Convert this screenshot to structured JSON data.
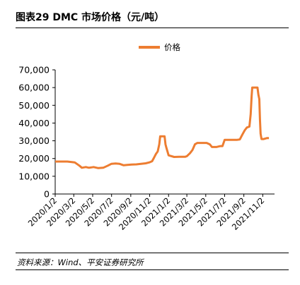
{
  "header": {
    "title": "图表29    DMC 市场价格（元/吨）"
  },
  "source": "资料来源：Wind、平安证券研究所",
  "chart_data": {
    "type": "line",
    "title": "",
    "xlabel": "",
    "ylabel": "",
    "ylim": [
      0,
      70000
    ],
    "yticks": [
      "0",
      "10,000",
      "20,000",
      "30,000",
      "40,000",
      "50,000",
      "60,000",
      "70,000"
    ],
    "ytick_values": [
      0,
      10000,
      20000,
      30000,
      40000,
      50000,
      60000,
      70000
    ],
    "xticks": [
      "2020/1/2",
      "2020/3/2",
      "2020/5/2",
      "2020/7/2",
      "2020/9/2",
      "2020/11/2",
      "2021/1/2",
      "2021/3/2",
      "2021/5/2",
      "2021/7/2",
      "2021/9/2",
      "2021/11/2"
    ],
    "xlim": [
      "2020-01-02",
      "2021-12-10"
    ],
    "legend": {
      "position": "top-center"
    },
    "grid": false,
    "color": "#ED7D31",
    "series": [
      {
        "name": "价格",
        "points": [
          [
            "2020-01-02",
            18300
          ],
          [
            "2020-01-20",
            18300
          ],
          [
            "2020-02-10",
            18300
          ],
          [
            "2020-02-25",
            18000
          ],
          [
            "2020-03-05",
            17800
          ],
          [
            "2020-03-20",
            16000
          ],
          [
            "2020-03-28",
            14800
          ],
          [
            "2020-04-10",
            15200
          ],
          [
            "2020-04-20",
            14800
          ],
          [
            "2020-05-05",
            15200
          ],
          [
            "2020-05-20",
            14600
          ],
          [
            "2020-06-05",
            14800
          ],
          [
            "2020-06-20",
            16000
          ],
          [
            "2020-07-01",
            17000
          ],
          [
            "2020-07-15",
            17200
          ],
          [
            "2020-07-28",
            17000
          ],
          [
            "2020-08-10",
            16200
          ],
          [
            "2020-08-22",
            16400
          ],
          [
            "2020-09-05",
            16600
          ],
          [
            "2020-09-20",
            16700
          ],
          [
            "2020-10-05",
            17000
          ],
          [
            "2020-10-20",
            17300
          ],
          [
            "2020-11-01",
            17800
          ],
          [
            "2020-11-10",
            18500
          ],
          [
            "2020-11-16",
            20500
          ],
          [
            "2020-11-22",
            22500
          ],
          [
            "2020-11-28",
            24000
          ],
          [
            "2020-12-03",
            28000
          ],
          [
            "2020-12-06",
            32500
          ],
          [
            "2020-12-15",
            32500
          ],
          [
            "2020-12-20",
            32500
          ],
          [
            "2020-12-23",
            28000
          ],
          [
            "2020-12-26",
            26000
          ],
          [
            "2021-01-02",
            21800
          ],
          [
            "2021-01-20",
            20900
          ],
          [
            "2021-02-05",
            21000
          ],
          [
            "2021-02-25",
            21000
          ],
          [
            "2021-03-02",
            21300
          ],
          [
            "2021-03-12",
            23000
          ],
          [
            "2021-03-20",
            24800
          ],
          [
            "2021-03-28",
            28000
          ],
          [
            "2021-04-05",
            28800
          ],
          [
            "2021-04-20",
            28800
          ],
          [
            "2021-05-05",
            28800
          ],
          [
            "2021-05-15",
            28000
          ],
          [
            "2021-05-22",
            26500
          ],
          [
            "2021-06-05",
            26500
          ],
          [
            "2021-06-18",
            27000
          ],
          [
            "2021-06-25",
            27000
          ],
          [
            "2021-07-02",
            30500
          ],
          [
            "2021-07-20",
            30500
          ],
          [
            "2021-08-10",
            30500
          ],
          [
            "2021-08-20",
            30800
          ],
          [
            "2021-08-28",
            33500
          ],
          [
            "2021-09-05",
            36000
          ],
          [
            "2021-09-12",
            37500
          ],
          [
            "2021-09-20",
            38000
          ],
          [
            "2021-09-24",
            45000
          ],
          [
            "2021-09-27",
            55000
          ],
          [
            "2021-09-29",
            60000
          ],
          [
            "2021-10-10",
            60000
          ],
          [
            "2021-10-16",
            60000
          ],
          [
            "2021-10-19",
            56000
          ],
          [
            "2021-10-22",
            53500
          ],
          [
            "2021-10-24",
            42000
          ],
          [
            "2021-10-26",
            34000
          ],
          [
            "2021-10-29",
            31000
          ],
          [
            "2021-11-05",
            31000
          ],
          [
            "2021-11-15",
            31500
          ],
          [
            "2021-11-22",
            31500
          ]
        ]
      }
    ]
  }
}
